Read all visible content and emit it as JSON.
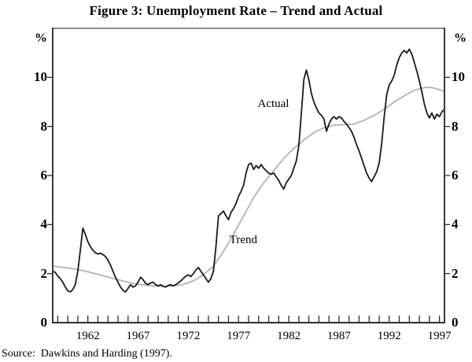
{
  "title": "Figure 3: Unemployment Rate – Trend and Actual",
  "source_note": "Source:  Dawkins and Harding (1997).",
  "chart_data": {
    "type": "line",
    "title": "Figure 3: Unemployment Rate – Trend and Actual",
    "xlabel": "",
    "ylabel": "%",
    "grid": false,
    "frame": {
      "top_color": "#8c8c8c",
      "side_color": "#3a3a3a",
      "bottom_color": "#2f2f2f"
    },
    "x_axis": {
      "range": [
        1958.5,
        1997.5
      ],
      "tick_start": 1959,
      "tick_end": 1997,
      "tick_step": 1,
      "label_years": [
        1962,
        1967,
        1972,
        1977,
        1982,
        1987,
        1992,
        1997
      ]
    },
    "y_axis": {
      "range": [
        0,
        12
      ],
      "ticks": [
        0,
        2,
        4,
        6,
        8,
        10
      ],
      "unit": "%",
      "sides": "both"
    },
    "annotations": [
      {
        "text": "Actual",
        "x": 1978.9,
        "y": 9.18
      },
      {
        "text": "Trend",
        "x": 1976.1,
        "y": 3.62
      }
    ],
    "series": [
      {
        "name": "Trend",
        "color": "#b3b3b3",
        "width": 1.8,
        "points": [
          [
            1958.5,
            2.3
          ],
          [
            1959.5,
            2.26
          ],
          [
            1960.5,
            2.2
          ],
          [
            1961.5,
            2.12
          ],
          [
            1962.5,
            2.02
          ],
          [
            1963.5,
            1.92
          ],
          [
            1964.5,
            1.8
          ],
          [
            1965.5,
            1.7
          ],
          [
            1966.5,
            1.6
          ],
          [
            1967.5,
            1.54
          ],
          [
            1968.5,
            1.5
          ],
          [
            1969.5,
            1.48
          ],
          [
            1970.5,
            1.5
          ],
          [
            1971.5,
            1.56
          ],
          [
            1972.5,
            1.7
          ],
          [
            1973.5,
            1.95
          ],
          [
            1974.5,
            2.3
          ],
          [
            1975.5,
            2.9
          ],
          [
            1976.5,
            3.6
          ],
          [
            1977.5,
            4.35
          ],
          [
            1978.5,
            5.1
          ],
          [
            1979.5,
            5.7
          ],
          [
            1980.5,
            6.2
          ],
          [
            1981.5,
            6.7
          ],
          [
            1982.5,
            7.1
          ],
          [
            1983.5,
            7.45
          ],
          [
            1984.5,
            7.75
          ],
          [
            1985.5,
            7.95
          ],
          [
            1986.5,
            8.05
          ],
          [
            1987.5,
            8.07
          ],
          [
            1988.5,
            8.1
          ],
          [
            1989.5,
            8.25
          ],
          [
            1990.5,
            8.45
          ],
          [
            1991.5,
            8.7
          ],
          [
            1992.5,
            9.0
          ],
          [
            1993.5,
            9.25
          ],
          [
            1994.5,
            9.48
          ],
          [
            1995.5,
            9.58
          ],
          [
            1996.0,
            9.6
          ],
          [
            1996.5,
            9.56
          ],
          [
            1997.0,
            9.5
          ],
          [
            1997.5,
            9.42
          ]
        ]
      },
      {
        "name": "Actual",
        "color": "#1a1a1a",
        "width": 1.8,
        "points": [
          [
            1958.5,
            2.1
          ],
          [
            1958.75,
            2.05
          ],
          [
            1959.0,
            1.9
          ],
          [
            1959.25,
            1.8
          ],
          [
            1959.5,
            1.65
          ],
          [
            1959.75,
            1.45
          ],
          [
            1960.0,
            1.3
          ],
          [
            1960.25,
            1.25
          ],
          [
            1960.5,
            1.35
          ],
          [
            1960.75,
            1.55
          ],
          [
            1961.0,
            2.1
          ],
          [
            1961.25,
            2.95
          ],
          [
            1961.5,
            3.85
          ],
          [
            1961.75,
            3.6
          ],
          [
            1962.0,
            3.3
          ],
          [
            1962.25,
            3.1
          ],
          [
            1962.5,
            2.95
          ],
          [
            1962.75,
            2.85
          ],
          [
            1963.0,
            2.8
          ],
          [
            1963.25,
            2.83
          ],
          [
            1963.5,
            2.78
          ],
          [
            1963.75,
            2.7
          ],
          [
            1964.0,
            2.55
          ],
          [
            1964.25,
            2.35
          ],
          [
            1964.5,
            2.1
          ],
          [
            1964.75,
            1.85
          ],
          [
            1965.0,
            1.65
          ],
          [
            1965.25,
            1.45
          ],
          [
            1965.5,
            1.32
          ],
          [
            1965.75,
            1.25
          ],
          [
            1966.0,
            1.4
          ],
          [
            1966.25,
            1.55
          ],
          [
            1966.5,
            1.45
          ],
          [
            1966.75,
            1.5
          ],
          [
            1967.0,
            1.65
          ],
          [
            1967.25,
            1.85
          ],
          [
            1967.5,
            1.75
          ],
          [
            1967.75,
            1.6
          ],
          [
            1968.0,
            1.55
          ],
          [
            1968.25,
            1.62
          ],
          [
            1968.5,
            1.65
          ],
          [
            1968.75,
            1.55
          ],
          [
            1969.0,
            1.5
          ],
          [
            1969.25,
            1.55
          ],
          [
            1969.5,
            1.48
          ],
          [
            1969.75,
            1.45
          ],
          [
            1970.0,
            1.52
          ],
          [
            1970.25,
            1.55
          ],
          [
            1970.5,
            1.5
          ],
          [
            1970.75,
            1.55
          ],
          [
            1971.0,
            1.62
          ],
          [
            1971.25,
            1.7
          ],
          [
            1971.5,
            1.8
          ],
          [
            1971.75,
            1.9
          ],
          [
            1972.0,
            1.95
          ],
          [
            1972.25,
            1.88
          ],
          [
            1972.5,
            2.0
          ],
          [
            1972.75,
            2.15
          ],
          [
            1973.0,
            2.25
          ],
          [
            1973.25,
            2.1
          ],
          [
            1973.5,
            1.95
          ],
          [
            1973.75,
            1.8
          ],
          [
            1974.0,
            1.65
          ],
          [
            1974.25,
            1.8
          ],
          [
            1974.5,
            2.1
          ],
          [
            1974.75,
            3.1
          ],
          [
            1975.0,
            4.35
          ],
          [
            1975.25,
            4.45
          ],
          [
            1975.5,
            4.55
          ],
          [
            1975.75,
            4.35
          ],
          [
            1976.0,
            4.2
          ],
          [
            1976.25,
            4.5
          ],
          [
            1976.5,
            4.65
          ],
          [
            1976.75,
            4.85
          ],
          [
            1977.0,
            5.15
          ],
          [
            1977.25,
            5.35
          ],
          [
            1977.5,
            5.6
          ],
          [
            1977.75,
            6.1
          ],
          [
            1978.0,
            6.45
          ],
          [
            1978.25,
            6.5
          ],
          [
            1978.5,
            6.25
          ],
          [
            1978.75,
            6.4
          ],
          [
            1979.0,
            6.3
          ],
          [
            1979.25,
            6.45
          ],
          [
            1979.5,
            6.3
          ],
          [
            1979.75,
            6.2
          ],
          [
            1980.0,
            6.1
          ],
          [
            1980.25,
            6.05
          ],
          [
            1980.5,
            6.1
          ],
          [
            1980.75,
            5.95
          ],
          [
            1981.0,
            5.8
          ],
          [
            1981.25,
            5.6
          ],
          [
            1981.5,
            5.45
          ],
          [
            1981.75,
            5.7
          ],
          [
            1982.0,
            5.85
          ],
          [
            1982.25,
            6.0
          ],
          [
            1982.5,
            6.3
          ],
          [
            1982.75,
            6.6
          ],
          [
            1983.0,
            7.2
          ],
          [
            1983.25,
            8.5
          ],
          [
            1983.5,
            9.9
          ],
          [
            1983.75,
            10.3
          ],
          [
            1984.0,
            9.9
          ],
          [
            1984.25,
            9.35
          ],
          [
            1984.5,
            9.0
          ],
          [
            1984.75,
            8.75
          ],
          [
            1985.0,
            8.55
          ],
          [
            1985.25,
            8.45
          ],
          [
            1985.5,
            8.3
          ],
          [
            1985.75,
            7.8
          ],
          [
            1986.0,
            8.1
          ],
          [
            1986.25,
            8.3
          ],
          [
            1986.5,
            8.4
          ],
          [
            1986.75,
            8.3
          ],
          [
            1987.0,
            8.4
          ],
          [
            1987.25,
            8.35
          ],
          [
            1987.5,
            8.2
          ],
          [
            1987.75,
            8.1
          ],
          [
            1988.0,
            7.95
          ],
          [
            1988.25,
            7.8
          ],
          [
            1988.5,
            7.55
          ],
          [
            1988.75,
            7.25
          ],
          [
            1989.0,
            7.0
          ],
          [
            1989.25,
            6.7
          ],
          [
            1989.5,
            6.4
          ],
          [
            1989.75,
            6.1
          ],
          [
            1990.0,
            5.9
          ],
          [
            1990.25,
            5.75
          ],
          [
            1990.5,
            5.95
          ],
          [
            1990.75,
            6.15
          ],
          [
            1991.0,
            6.5
          ],
          [
            1991.25,
            7.3
          ],
          [
            1991.5,
            8.4
          ],
          [
            1991.75,
            9.3
          ],
          [
            1992.0,
            9.7
          ],
          [
            1992.25,
            9.85
          ],
          [
            1992.5,
            10.1
          ],
          [
            1992.75,
            10.5
          ],
          [
            1993.0,
            10.8
          ],
          [
            1993.25,
            11.0
          ],
          [
            1993.5,
            11.1
          ],
          [
            1993.75,
            11.0
          ],
          [
            1994.0,
            11.15
          ],
          [
            1994.25,
            10.95
          ],
          [
            1994.5,
            10.6
          ],
          [
            1994.75,
            10.25
          ],
          [
            1995.0,
            9.85
          ],
          [
            1995.25,
            9.4
          ],
          [
            1995.5,
            8.9
          ],
          [
            1995.75,
            8.55
          ],
          [
            1996.0,
            8.35
          ],
          [
            1996.25,
            8.55
          ],
          [
            1996.5,
            8.3
          ],
          [
            1996.75,
            8.5
          ],
          [
            1997.0,
            8.4
          ],
          [
            1997.25,
            8.6
          ],
          [
            1997.5,
            8.7
          ]
        ]
      }
    ]
  }
}
